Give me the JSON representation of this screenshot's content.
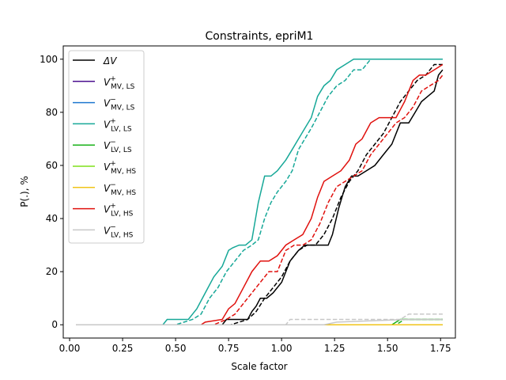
{
  "chart_data": {
    "type": "line",
    "title": "Constraints, epriM1",
    "xlabel": "Scale factor",
    "ylabel": "P(.), %",
    "xlim": [
      -0.03,
      1.82
    ],
    "ylim": [
      -5,
      105
    ],
    "xticks": [
      "0.00",
      "0.25",
      "0.50",
      "0.75",
      "1.00",
      "1.25",
      "1.50",
      "1.75"
    ],
    "yticks": [
      "0",
      "20",
      "40",
      "60",
      "80",
      "100"
    ],
    "grid": false,
    "legend_position": "top-left",
    "series": [
      {
        "name": "ΔV",
        "color": "#000000",
        "solid": [
          [
            0.03,
            0
          ],
          [
            0.72,
            0
          ],
          [
            0.74,
            2
          ],
          [
            0.84,
            2
          ],
          [
            0.86,
            5
          ],
          [
            0.88,
            7
          ],
          [
            0.9,
            10
          ],
          [
            0.93,
            10
          ],
          [
            0.96,
            12
          ],
          [
            1.0,
            16
          ],
          [
            1.04,
            24
          ],
          [
            1.08,
            28
          ],
          [
            1.11,
            30
          ],
          [
            1.2,
            30
          ],
          [
            1.22,
            30
          ],
          [
            1.24,
            34
          ],
          [
            1.27,
            44
          ],
          [
            1.3,
            52
          ],
          [
            1.33,
            56
          ],
          [
            1.36,
            56
          ],
          [
            1.4,
            58
          ],
          [
            1.44,
            60
          ],
          [
            1.48,
            64
          ],
          [
            1.52,
            68
          ],
          [
            1.56,
            76
          ],
          [
            1.6,
            76
          ],
          [
            1.63,
            80
          ],
          [
            1.66,
            84
          ],
          [
            1.69,
            86
          ],
          [
            1.72,
            88
          ],
          [
            1.74,
            94
          ],
          [
            1.76,
            96
          ]
        ],
        "dashed": [
          [
            0.03,
            0
          ],
          [
            0.76,
            0
          ],
          [
            0.8,
            1
          ],
          [
            0.84,
            2
          ],
          [
            0.88,
            5
          ],
          [
            0.92,
            10
          ],
          [
            0.96,
            14
          ],
          [
            1.0,
            18
          ],
          [
            1.04,
            24
          ],
          [
            1.08,
            28
          ],
          [
            1.12,
            30
          ],
          [
            1.16,
            30
          ],
          [
            1.2,
            34
          ],
          [
            1.24,
            40
          ],
          [
            1.28,
            48
          ],
          [
            1.32,
            54
          ],
          [
            1.36,
            58
          ],
          [
            1.4,
            64
          ],
          [
            1.44,
            68
          ],
          [
            1.48,
            72
          ],
          [
            1.52,
            78
          ],
          [
            1.56,
            84
          ],
          [
            1.6,
            88
          ],
          [
            1.64,
            92
          ],
          [
            1.68,
            94
          ],
          [
            1.72,
            98
          ],
          [
            1.76,
            98
          ]
        ]
      },
      {
        "name": "V⁺MV,LS",
        "color": "#4b0f8f",
        "solid": [
          [
            0.03,
            0
          ],
          [
            1.76,
            0
          ]
        ],
        "dashed": [
          [
            0.03,
            0
          ],
          [
            1.76,
            0
          ]
        ]
      },
      {
        "name": "V⁻MV,LS",
        "color": "#1f77d0",
        "solid": [
          [
            0.03,
            0
          ],
          [
            1.76,
            0
          ]
        ],
        "dashed": [
          [
            0.03,
            0
          ],
          [
            1.76,
            0
          ]
        ]
      },
      {
        "name": "V⁺LV,LS",
        "color": "#17a898",
        "solid": [
          [
            0.03,
            0
          ],
          [
            0.44,
            0
          ],
          [
            0.46,
            2
          ],
          [
            0.56,
            2
          ],
          [
            0.58,
            4
          ],
          [
            0.6,
            6
          ],
          [
            0.64,
            12
          ],
          [
            0.68,
            18
          ],
          [
            0.72,
            22
          ],
          [
            0.75,
            28
          ],
          [
            0.77,
            29
          ],
          [
            0.8,
            30
          ],
          [
            0.83,
            30
          ],
          [
            0.86,
            32
          ],
          [
            0.89,
            46
          ],
          [
            0.92,
            56
          ],
          [
            0.95,
            56
          ],
          [
            0.98,
            58
          ],
          [
            1.02,
            62
          ],
          [
            1.05,
            66
          ],
          [
            1.08,
            70
          ],
          [
            1.11,
            74
          ],
          [
            1.14,
            78
          ],
          [
            1.17,
            86
          ],
          [
            1.2,
            90
          ],
          [
            1.23,
            92
          ],
          [
            1.26,
            96
          ],
          [
            1.3,
            98
          ],
          [
            1.34,
            100
          ],
          [
            1.76,
            100
          ]
        ],
        "dashed": [
          [
            0.03,
            0
          ],
          [
            0.5,
            0
          ],
          [
            0.54,
            1
          ],
          [
            0.58,
            2
          ],
          [
            0.62,
            4
          ],
          [
            0.66,
            10
          ],
          [
            0.7,
            14
          ],
          [
            0.74,
            20
          ],
          [
            0.78,
            24
          ],
          [
            0.82,
            28
          ],
          [
            0.86,
            30
          ],
          [
            0.89,
            32
          ],
          [
            0.92,
            40
          ],
          [
            0.95,
            46
          ],
          [
            0.98,
            50
          ],
          [
            1.02,
            54
          ],
          [
            1.05,
            58
          ],
          [
            1.08,
            66
          ],
          [
            1.11,
            70
          ],
          [
            1.14,
            74
          ],
          [
            1.18,
            80
          ],
          [
            1.22,
            86
          ],
          [
            1.26,
            90
          ],
          [
            1.3,
            92
          ],
          [
            1.34,
            96
          ],
          [
            1.38,
            96
          ],
          [
            1.42,
            100
          ],
          [
            1.76,
            100
          ]
        ]
      },
      {
        "name": "V⁻LV,LS",
        "color": "#19b219",
        "solid": [
          [
            0.03,
            0
          ],
          [
            1.52,
            0
          ],
          [
            1.56,
            2
          ],
          [
            1.76,
            2
          ]
        ],
        "dashed": [
          [
            0.03,
            0
          ],
          [
            1.54,
            0
          ],
          [
            1.58,
            2
          ],
          [
            1.76,
            2
          ]
        ]
      },
      {
        "name": "V⁺MV,HS",
        "color": "#7ee01a",
        "solid": [
          [
            0.03,
            0
          ],
          [
            1.76,
            0
          ]
        ],
        "dashed": [
          [
            0.03,
            0
          ],
          [
            1.76,
            0
          ]
        ]
      },
      {
        "name": "V⁻MV,HS",
        "color": "#f0c419",
        "solid": [
          [
            0.03,
            0
          ],
          [
            1.76,
            0
          ]
        ],
        "dashed": [
          [
            0.03,
            0
          ],
          [
            1.76,
            0
          ]
        ]
      },
      {
        "name": "V⁺LV,HS",
        "color": "#e0110e",
        "solid": [
          [
            0.03,
            0
          ],
          [
            0.62,
            0
          ],
          [
            0.64,
            1
          ],
          [
            0.72,
            2
          ],
          [
            0.75,
            6
          ],
          [
            0.78,
            8
          ],
          [
            0.82,
            14
          ],
          [
            0.86,
            20
          ],
          [
            0.9,
            24
          ],
          [
            0.94,
            24
          ],
          [
            0.98,
            26
          ],
          [
            1.02,
            30
          ],
          [
            1.06,
            32
          ],
          [
            1.1,
            34
          ],
          [
            1.14,
            40
          ],
          [
            1.17,
            48
          ],
          [
            1.2,
            54
          ],
          [
            1.24,
            56
          ],
          [
            1.28,
            58
          ],
          [
            1.32,
            62
          ],
          [
            1.35,
            68
          ],
          [
            1.38,
            70
          ],
          [
            1.42,
            76
          ],
          [
            1.46,
            78
          ],
          [
            1.5,
            78
          ],
          [
            1.54,
            78
          ],
          [
            1.58,
            84
          ],
          [
            1.62,
            92
          ],
          [
            1.65,
            94
          ],
          [
            1.68,
            94
          ],
          [
            1.72,
            96
          ],
          [
            1.76,
            98
          ]
        ],
        "dashed": [
          [
            0.03,
            0
          ],
          [
            0.68,
            0
          ],
          [
            0.74,
            2
          ],
          [
            0.78,
            4
          ],
          [
            0.82,
            8
          ],
          [
            0.86,
            12
          ],
          [
            0.9,
            16
          ],
          [
            0.94,
            20
          ],
          [
            0.98,
            20
          ],
          [
            1.02,
            28
          ],
          [
            1.06,
            30
          ],
          [
            1.1,
            30
          ],
          [
            1.14,
            32
          ],
          [
            1.18,
            38
          ],
          [
            1.22,
            46
          ],
          [
            1.26,
            52
          ],
          [
            1.3,
            54
          ],
          [
            1.34,
            56
          ],
          [
            1.38,
            58
          ],
          [
            1.42,
            64
          ],
          [
            1.46,
            68
          ],
          [
            1.5,
            72
          ],
          [
            1.54,
            76
          ],
          [
            1.58,
            78
          ],
          [
            1.62,
            82
          ],
          [
            1.66,
            88
          ],
          [
            1.7,
            90
          ],
          [
            1.74,
            92
          ],
          [
            1.76,
            94
          ]
        ]
      },
      {
        "name": "V⁻LV,HS",
        "color": "#c8c8c8",
        "solid": [
          [
            0.03,
            0
          ],
          [
            1.2,
            0
          ],
          [
            1.26,
            1
          ],
          [
            1.6,
            2
          ],
          [
            1.76,
            2
          ]
        ],
        "dashed": [
          [
            0.03,
            0
          ],
          [
            1.02,
            0
          ],
          [
            1.04,
            2
          ],
          [
            1.56,
            2
          ],
          [
            1.6,
            4
          ],
          [
            1.76,
            4
          ]
        ]
      }
    ],
    "legend": [
      {
        "main": "ΔV",
        "sup": "",
        "sub": ""
      },
      {
        "main": "V",
        "sup": "+",
        "sub": "MV, LS"
      },
      {
        "main": "V",
        "sup": "−",
        "sub": "MV, LS"
      },
      {
        "main": "V",
        "sup": "+",
        "sub": "LV, LS"
      },
      {
        "main": "V",
        "sup": "−",
        "sub": "LV, LS"
      },
      {
        "main": "V",
        "sup": "+",
        "sub": "MV, HS"
      },
      {
        "main": "V",
        "sup": "−",
        "sub": "MV, HS"
      },
      {
        "main": "V",
        "sup": "+",
        "sub": "LV, HS"
      },
      {
        "main": "V",
        "sup": "−",
        "sub": "LV, HS"
      }
    ]
  }
}
